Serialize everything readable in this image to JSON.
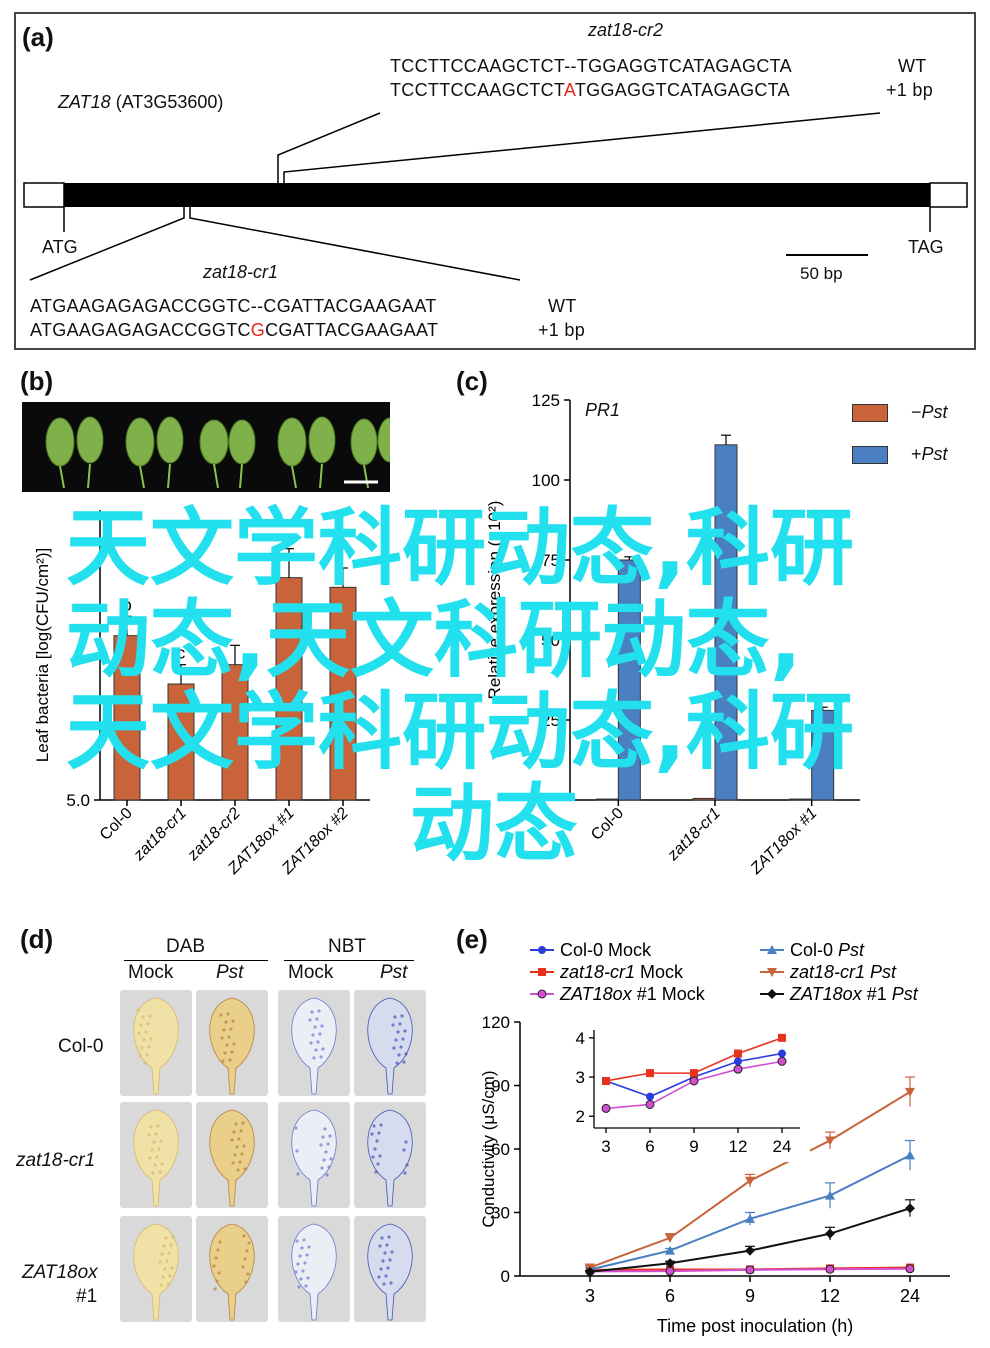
{
  "panel_a": {
    "label": "(a)",
    "gene": "ZAT18",
    "gene_locus": "(AT3G53600)",
    "start_codon": "ATG",
    "stop_codon": "TAG",
    "scale": "50 bp",
    "cr2": {
      "name": "zat18-cr2",
      "wt_seq_pre": "TCCTTCCAAGCTCT",
      "wt_seq_gap": "--",
      "wt_seq_post": "TGGAGGTCATAGAGCTA",
      "wt_label": "WT",
      "mut_seq_pre": "TCCTTCCAAGCTCT",
      "mut_insert": "A",
      "mut_seq_post": "TGGAGGTCATAGAGCTA",
      "mut_label": "+1 bp"
    },
    "cr1": {
      "name": "zat18-cr1",
      "wt_seq_pre": "ATGAAGAGAGACCGGTC",
      "wt_seq_gap": "--",
      "wt_seq_post": "CGATTACGAAGAAT",
      "wt_label": "WT",
      "mut_seq_pre": "ATGAAGAGAGACCGGTC",
      "mut_insert": "G",
      "mut_seq_post": "CGATTACGAAGAAT",
      "mut_label": "+1 bp"
    }
  },
  "panel_b": {
    "label": "(b)",
    "ylabel": "Leaf bacteria [log(CFU/cm²)]",
    "y_tick_bottom": "5.0"
  },
  "panel_c": {
    "label": "(c)",
    "gene": "PR1",
    "ylabel": "Relative expression (×10²)",
    "legend_minus": "−",
    "legend_plus": "+",
    "legend_pst": "Pst"
  },
  "panel_d": {
    "label": "(d)",
    "dab": "DAB",
    "nbt": "NBT",
    "mock": "Mock",
    "pst": "Pst",
    "rows": [
      "Col-0",
      "zat18-cr1",
      "ZAT18ox",
      "#1"
    ]
  },
  "panel_e": {
    "label": "(e)",
    "xlabel": "Time post inoculation (h)",
    "ylabel": "Conductivity (μS/cm)",
    "legend": [
      {
        "name": "Col-0 Mock",
        "color": "#2b3be0"
      },
      {
        "name": "zat18-cr1 Mock",
        "color": "#e8321e"
      },
      {
        "name": "ZAT18ox #1 Mock",
        "color": "#d24fd0"
      },
      {
        "name": "Col-0 Pst",
        "color": "#4a7fc1"
      },
      {
        "name": "zat18-cr1 Pst",
        "color": "#c8633a"
      },
      {
        "name": "ZAT18ox #1 Pst",
        "color": "#111111"
      }
    ]
  },
  "overlay_text": {
    "line1": "天文学科研动态,科研",
    "line2": "动态,天文科研动态,",
    "line3": "天文学科研动态,科研",
    "line4": "动态"
  },
  "chart_data": [
    {
      "type": "bar",
      "panel": "b",
      "categories": [
        "Col-0",
        "zat18-cr1",
        "zat18-cr2",
        "ZAT18ox #1",
        "ZAT18ox #2"
      ],
      "values": [
        6.7,
        6.2,
        6.4,
        7.3,
        7.2
      ],
      "errors": [
        0.2,
        0.2,
        0.2,
        0.3,
        0.2
      ],
      "letters": [
        "b",
        "c",
        "",
        "a",
        ""
      ],
      "ylim": [
        5.0,
        8.0
      ],
      "ylabel": "Leaf bacteria [log(CFU/cm²)]",
      "color": "#c8633a"
    },
    {
      "type": "bar",
      "panel": "c",
      "title": "PR1",
      "categories": [
        "Col-0",
        "zat18-cr1",
        "ZAT18ox #1"
      ],
      "series": [
        {
          "name": "−Pst",
          "values": [
            0.3,
            0.5,
            0.3
          ],
          "color": "#c8633a"
        },
        {
          "name": "+Pst",
          "values": [
            75,
            111,
            28
          ],
          "color": "#4a7fc1"
        }
      ],
      "errors_plus": [
        1,
        3,
        1
      ],
      "yticks": [
        25,
        50,
        75,
        100,
        125
      ],
      "ylim": [
        0,
        125
      ],
      "ylabel": "Relative expression (×10²)"
    },
    {
      "type": "line",
      "panel": "e",
      "x": [
        3,
        6,
        9,
        12,
        24
      ],
      "xlabel": "Time post inoculation (h)",
      "ylabel": "Conductivity (μS/cm)",
      "yticks": [
        0,
        30,
        60,
        90,
        120
      ],
      "ylim": [
        0,
        120
      ],
      "series": [
        {
          "name": "Col-0 Mock",
          "values": [
            2.9,
            2.5,
            3.0,
            3.4,
            3.6
          ],
          "marker": "circle",
          "color": "#2b3be0"
        },
        {
          "name": "zat18-cr1 Mock",
          "values": [
            2.9,
            3.1,
            3.1,
            3.6,
            4.0
          ],
          "marker": "square",
          "color": "#e8321e"
        },
        {
          "name": "ZAT18ox #1 Mock",
          "values": [
            2.2,
            2.3,
            2.9,
            3.2,
            3.4
          ],
          "marker": "circle-open",
          "color": "#d24fd0"
        },
        {
          "name": "Col-0 Pst",
          "values": [
            3,
            12,
            27,
            38,
            57
          ],
          "marker": "triangle-up",
          "color": "#4a7fc1",
          "errors": [
            1,
            1,
            3,
            6,
            7
          ]
        },
        {
          "name": "zat18-cr1 Pst",
          "values": [
            4,
            18,
            45,
            64,
            87
          ],
          "marker": "triangle-down",
          "color": "#c8633a",
          "errors": [
            1,
            2,
            3,
            4,
            7
          ]
        },
        {
          "name": "ZAT18ox #1 Pst",
          "values": [
            2,
            6,
            12,
            20,
            32
          ],
          "marker": "diamond",
          "color": "#111111",
          "errors": [
            0.5,
            1,
            2,
            3,
            4
          ]
        }
      ],
      "inset": {
        "x": [
          3,
          6,
          9,
          12,
          24
        ],
        "yticks": [
          2,
          3,
          4
        ],
        "ylim": [
          1.7,
          4.2
        ]
      }
    }
  ]
}
